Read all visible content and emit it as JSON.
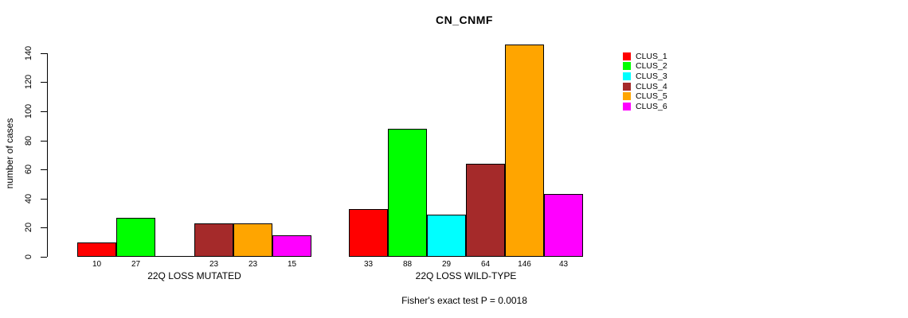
{
  "chart_data": {
    "type": "bar",
    "title": "CN_CNMF",
    "ylabel": "number of cases",
    "xlabel": "",
    "ylim": [
      0,
      140
    ],
    "yticks": [
      0,
      20,
      40,
      60,
      80,
      100,
      120,
      140
    ],
    "grid": false,
    "legend_position": "right",
    "series_names": [
      "CLUS_1",
      "CLUS_2",
      "CLUS_3",
      "CLUS_4",
      "CLUS_5",
      "CLUS_6"
    ],
    "series_colors": [
      "#FF0000",
      "#00FF00",
      "#00FFFF",
      "#A52A2A",
      "#FFA500",
      "#FF00FF"
    ],
    "groups": [
      {
        "label": "22Q LOSS MUTATED",
        "values": [
          10,
          27,
          0,
          23,
          23,
          15
        ],
        "bar_labels": [
          "10",
          "27",
          "",
          "23",
          "23",
          "15"
        ]
      },
      {
        "label": "22Q LOSS WILD-TYPE",
        "values": [
          33,
          88,
          29,
          64,
          146,
          43
        ],
        "bar_labels": [
          "33",
          "88",
          "29",
          "64",
          "146",
          "43"
        ]
      }
    ],
    "annotation": "Fisher's exact test P = 0.0018"
  }
}
